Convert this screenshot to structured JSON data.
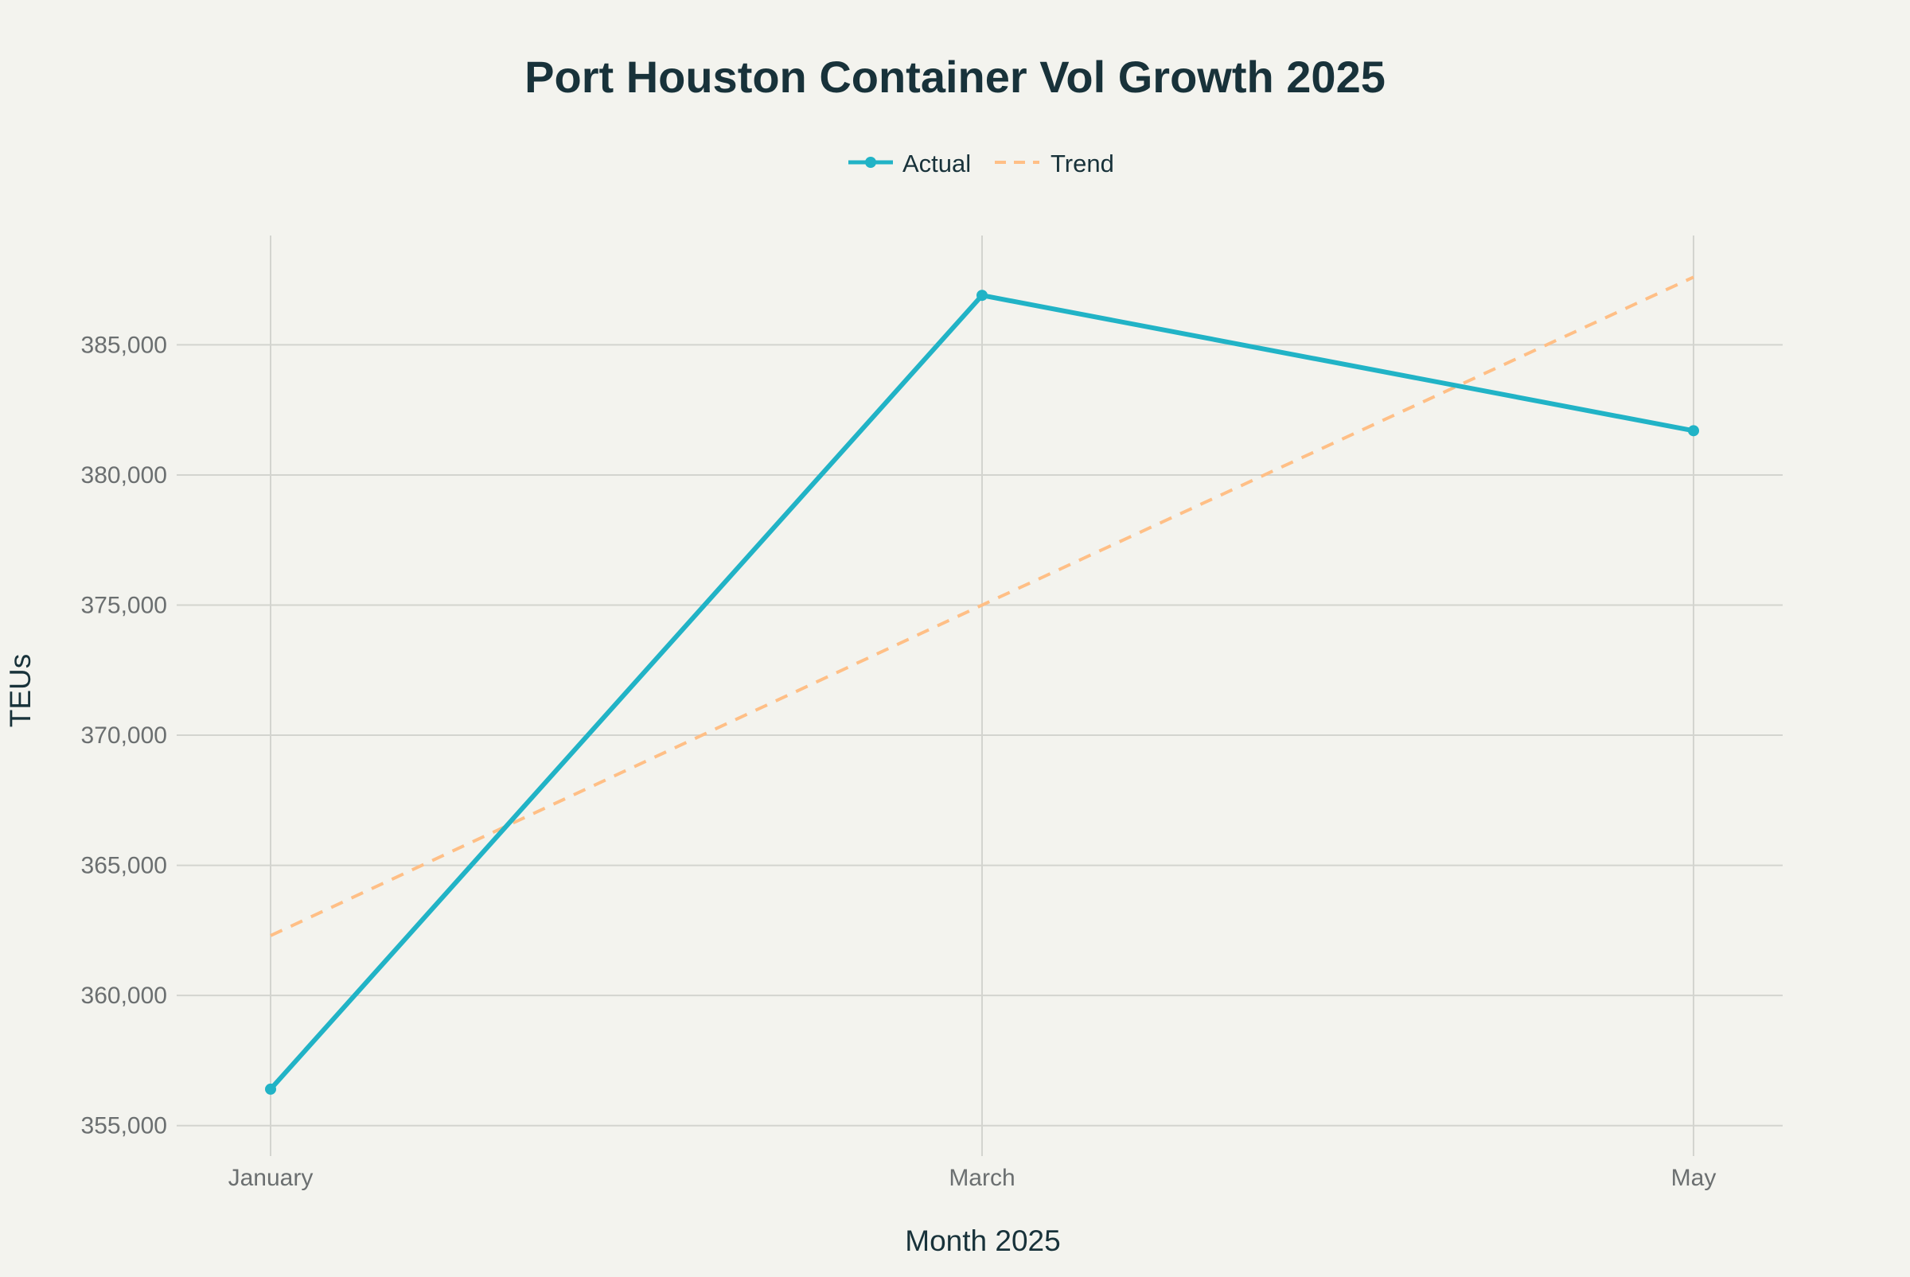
{
  "colors": {
    "background": "#f3f3ee",
    "actual": "#21b3c6",
    "trend": "#ffbf86",
    "grid": "#d3d4cf",
    "text": "#18323a",
    "tick_text": "#6b6f70"
  },
  "chart_data": {
    "type": "line",
    "title": "Port Houston Container Vol Growth 2025",
    "xlabel": "Month 2025",
    "ylabel": "TEUs",
    "categories": [
      "January",
      "March",
      "May"
    ],
    "series": [
      {
        "name": "Actual",
        "style": "solid-with-markers",
        "color": "#21b3c6",
        "values": [
          356400,
          386900,
          381700
        ]
      },
      {
        "name": "Trend",
        "style": "dashed",
        "color": "#ffbf86",
        "values": [
          362300,
          375000,
          387600
        ]
      }
    ],
    "ylim": [
      354900,
      389200
    ],
    "yticks": [
      355000,
      360000,
      365000,
      370000,
      375000,
      380000,
      385000
    ],
    "ytick_labels": [
      "355,000",
      "360,000",
      "365,000",
      "370,000",
      "375,000",
      "380,000",
      "385,000"
    ],
    "grid": true,
    "legend_position": "top-center"
  }
}
